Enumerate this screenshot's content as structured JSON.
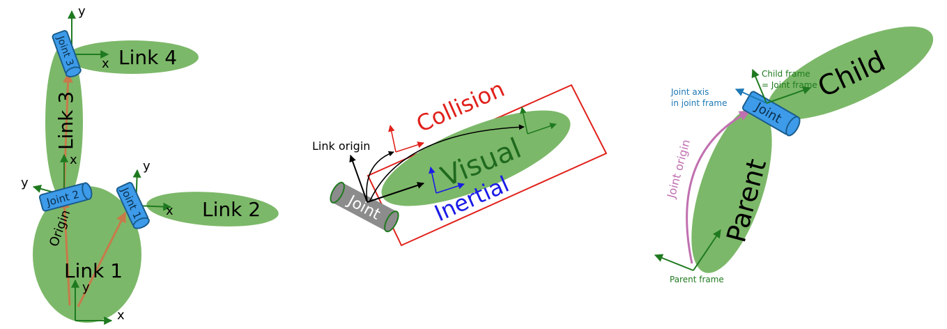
{
  "colors": {
    "link_fill": "#7cb869",
    "joint_fill": "#3d9be9",
    "joint_stroke": "#1a5c8c",
    "grey_joint": "#8c8c8c",
    "frame_green": "#1f7a1f",
    "origin_arrow": "#c87a4a",
    "collision_red": "#e0201a",
    "inertial_blue": "#1a1ae6",
    "visual_text": "#1f6a1f",
    "joint_axis_blue": "#1e78b4",
    "joint_origin_purple": "#c070b0"
  },
  "left": {
    "links": [
      "Link 1",
      "Link 2",
      "Link 3",
      "Link 4"
    ],
    "joints": [
      "Joint 1",
      "Joint 2",
      "Joint 3"
    ],
    "origin_label": "Origin",
    "axis_x": "x",
    "axis_y": "y"
  },
  "middle": {
    "collision": "Collision",
    "visual": "Visual",
    "inertial": "Inertial",
    "joint": "Joint",
    "link_origin": "Link origin"
  },
  "right": {
    "child": "Child",
    "parent": "Parent",
    "joint": "Joint",
    "child_frame_line1": "Child frame",
    "child_frame_line2": "= Joint frame",
    "joint_axis_line1": "Joint axis",
    "joint_axis_line2": "in joint frame",
    "joint_origin": "Joint origin",
    "parent_frame": "Parent frame"
  }
}
